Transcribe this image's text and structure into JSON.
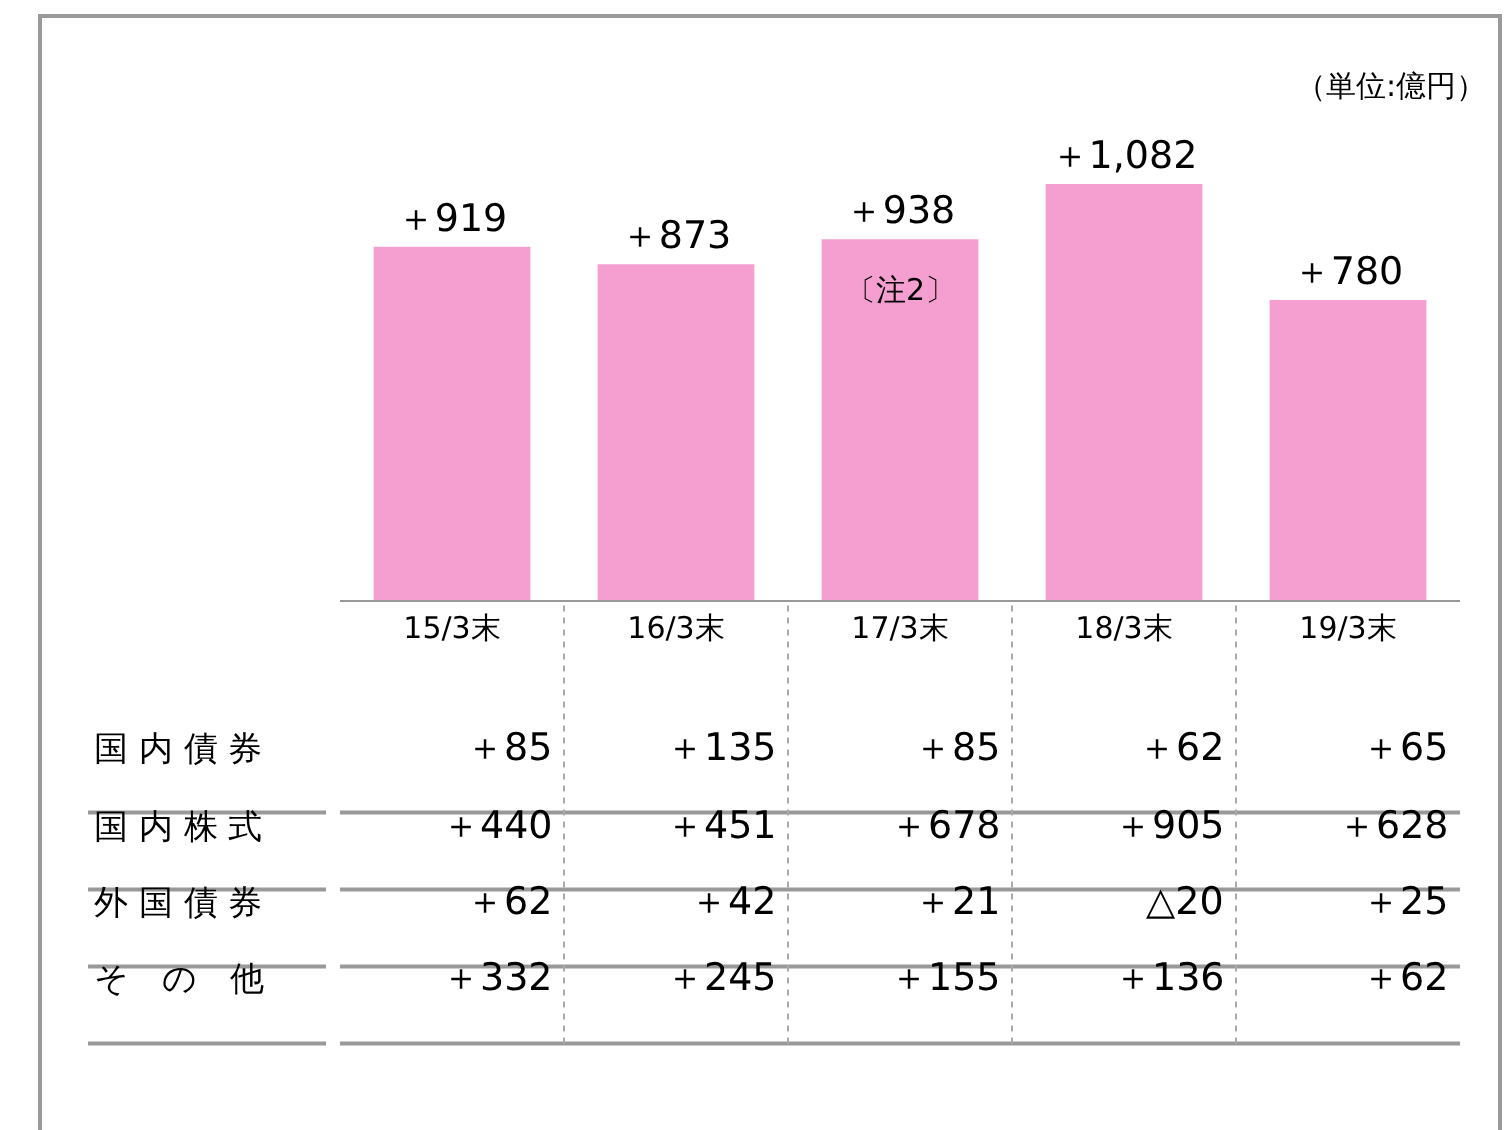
{
  "chart_data": {
    "type": "bar",
    "categories": [
      "15/3末",
      "16/3末",
      "17/3末",
      "18/3末",
      "19/3末"
    ],
    "values": [
      919,
      873,
      938,
      1082,
      780
    ],
    "value_labels": [
      "＋919",
      "＋873",
      "＋938",
      "＋1,082",
      "＋780"
    ],
    "color": "#f59fd0",
    "annotations": [
      "（単位:億円）",
      "〔注2〕",
      "国 内 債 券",
      "＋85",
      "＋135",
      "＋85",
      "＋62",
      "＋65",
      "国 内 株 式",
      "＋440",
      "＋451",
      "＋678",
      "＋905",
      "＋628",
      "外 国 債 券",
      "＋62",
      "＋42",
      "＋21",
      "△20",
      "＋25",
      "そ　の　他",
      "＋332",
      "＋245",
      "＋155",
      "＋136",
      "＋62"
    ],
    "legend": false
  }
}
